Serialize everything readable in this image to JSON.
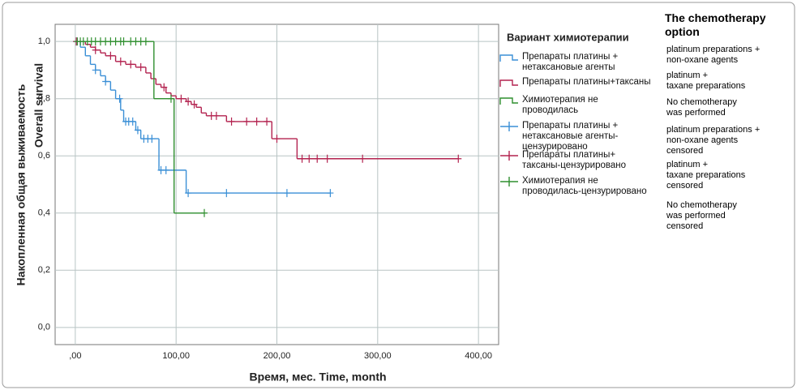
{
  "chart_data": {
    "type": "step",
    "ylabel": "Накопленная общая выживаемость",
    "ylabel2": "Overall survival",
    "xlabel": "Время, мес. Time, month",
    "legend_title": "Вариант химиотерапии",
    "xlim": [
      -20,
      420
    ],
    "ylim": [
      -0.06,
      1.06
    ],
    "xticks": [
      {
        "value": 0,
        "label": ",00"
      },
      {
        "value": 100,
        "label": "100,00"
      },
      {
        "value": 200,
        "label": "200,00"
      },
      {
        "value": 300,
        "label": "300,00"
      },
      {
        "value": 400,
        "label": "400,00"
      }
    ],
    "yticks": [
      {
        "value": 0,
        "label": "0,0"
      },
      {
        "value": 0.2,
        "label": "0,2"
      },
      {
        "value": 0.4,
        "label": "0,4"
      },
      {
        "value": 0.6,
        "label": "0,6"
      },
      {
        "value": 0.8,
        "label": "0,8"
      },
      {
        "value": 1,
        "label": "1,0"
      }
    ],
    "grid": true,
    "series": [
      {
        "name": "Препараты платины +\nнетаксановые агенты",
        "color": "#3a8fd6",
        "kind": "line",
        "x": [
          0,
          5,
          10,
          15,
          20,
          25,
          30,
          35,
          40,
          45,
          48,
          60,
          65,
          83,
          110,
          253
        ],
        "values": [
          1.0,
          0.98,
          0.95,
          0.92,
          0.9,
          0.88,
          0.86,
          0.83,
          0.8,
          0.76,
          0.72,
          0.69,
          0.66,
          0.55,
          0.47,
          0.47
        ]
      },
      {
        "name": "Препараты платины+таксаны",
        "color": "#b3224f",
        "kind": "line",
        "x": [
          0,
          10,
          15,
          20,
          25,
          30,
          40,
          50,
          60,
          70,
          75,
          80,
          85,
          90,
          95,
          100,
          110,
          115,
          120,
          125,
          130,
          150,
          195,
          220,
          380
        ],
        "values": [
          1.0,
          0.99,
          0.98,
          0.97,
          0.96,
          0.95,
          0.93,
          0.92,
          0.91,
          0.89,
          0.87,
          0.85,
          0.84,
          0.82,
          0.81,
          0.8,
          0.79,
          0.78,
          0.77,
          0.75,
          0.74,
          0.72,
          0.66,
          0.59,
          0.59
        ]
      },
      {
        "name": "Химиотерапия не\nпроводилась",
        "color": "#2f8f2f",
        "kind": "line",
        "x": [
          0,
          78,
          98,
          128
        ],
        "values": [
          1.0,
          0.8,
          0.4,
          0.4
        ]
      },
      {
        "name": "Препараты платины +\nнетаксановые агенты-\nцензурировано",
        "color": "#3a8fd6",
        "kind": "censored",
        "x": [
          1,
          20,
          30,
          44,
          50,
          53,
          57,
          62,
          68,
          72,
          76,
          85,
          90,
          112,
          150,
          210,
          253
        ],
        "values": [
          1.0,
          0.9,
          0.86,
          0.8,
          0.72,
          0.72,
          0.72,
          0.69,
          0.66,
          0.66,
          0.66,
          0.55,
          0.55,
          0.47,
          0.47,
          0.47,
          0.47
        ]
      },
      {
        "name": "Препараты платины+\nтаксаны-цензурировано",
        "color": "#b3224f",
        "kind": "censored",
        "x": [
          1,
          20,
          35,
          45,
          55,
          65,
          88,
          105,
          112,
          118,
          135,
          140,
          155,
          170,
          180,
          190,
          200,
          225,
          232,
          240,
          250,
          285,
          380
        ],
        "values": [
          1.0,
          0.97,
          0.95,
          0.93,
          0.92,
          0.91,
          0.84,
          0.8,
          0.79,
          0.78,
          0.74,
          0.74,
          0.72,
          0.72,
          0.72,
          0.72,
          0.66,
          0.59,
          0.59,
          0.59,
          0.59,
          0.59,
          0.59
        ]
      },
      {
        "name": "Химиотерапия не\nпроводилась-цензурировано",
        "color": "#2f8f2f",
        "kind": "censored",
        "x": [
          2,
          5,
          8,
          12,
          16,
          20,
          25,
          30,
          35,
          40,
          45,
          48,
          55,
          60,
          65,
          70,
          95,
          128
        ],
        "values": [
          1.0,
          1.0,
          1.0,
          1.0,
          1.0,
          1.0,
          1.0,
          1.0,
          1.0,
          1.0,
          1.0,
          1.0,
          1.0,
          1.0,
          1.0,
          1.0,
          0.8,
          0.4
        ]
      }
    ]
  },
  "translation": {
    "title": "The chemotherapy\noption",
    "entries": [
      "platinum preparations +\nnon-oxane agents",
      "platinum +\ntaxane preparations",
      "No chemotherapy\nwas performed",
      "platinum preparations +\nnon-oxane agents\ncensored",
      "platinum +\ntaxane preparations\ncensored",
      "No chemotherapy\nwas performed\ncensored"
    ]
  }
}
